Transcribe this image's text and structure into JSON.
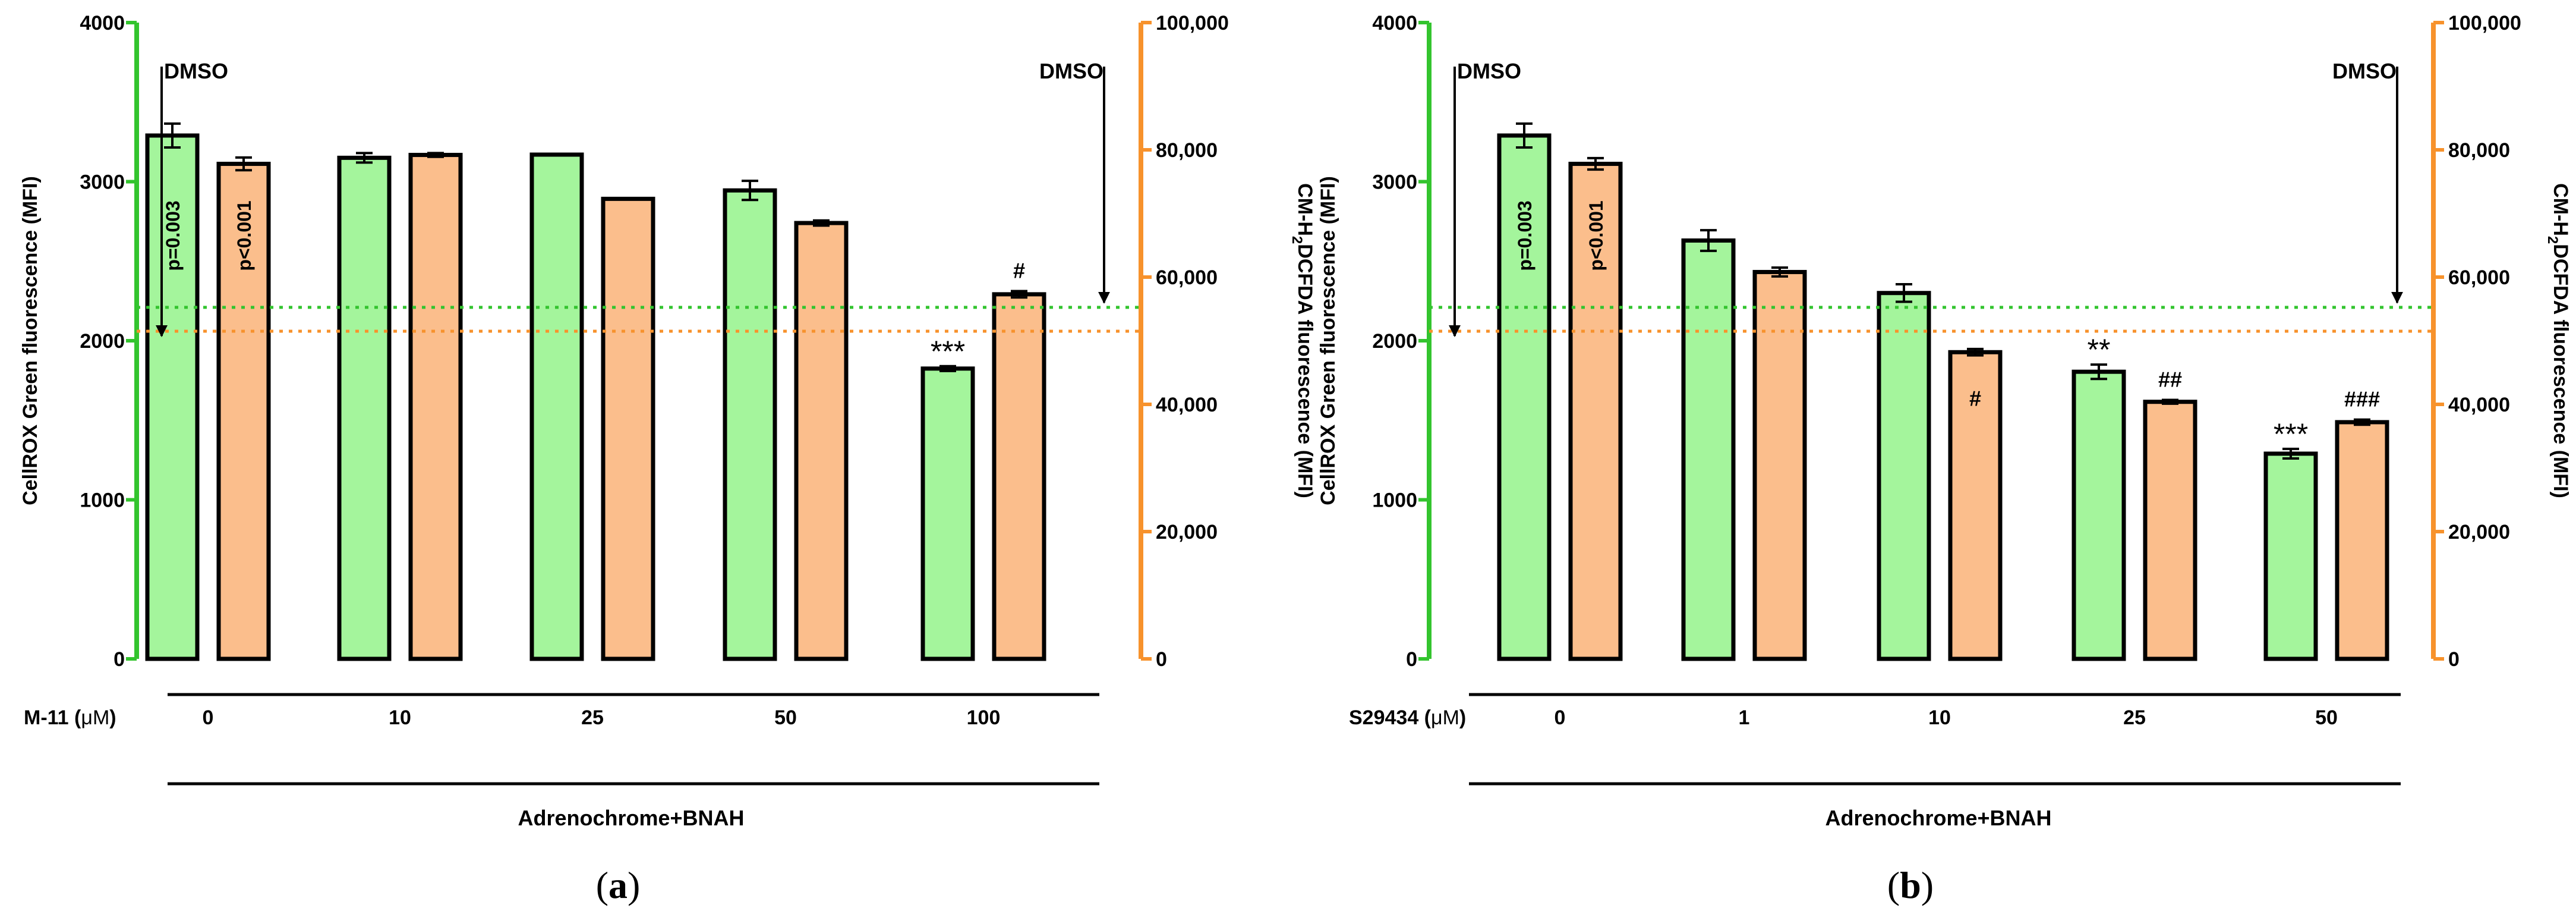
{
  "colors": {
    "green_bar": "#a4f59c",
    "orange_bar": "#fbbe8c",
    "green_axis": "#33c42e",
    "orange_axis": "#f7922c",
    "outline": "#000000"
  },
  "chart_data": [
    {
      "type": "bar",
      "panel_label": "a",
      "categories": [
        "0",
        "10",
        "25",
        "50",
        "100"
      ],
      "series": [
        {
          "name": "CellROX Green fluorescence (MFI)",
          "axis": "left",
          "values": [
            3290,
            3150,
            3170,
            2945,
            1825
          ],
          "errors": [
            75,
            30,
            0,
            60,
            15
          ]
        },
        {
          "name": "CM-H2DCFDA fluorescence (MFI)",
          "axis": "right",
          "values": [
            77800,
            79200,
            72300,
            68500,
            57300
          ],
          "errors": [
            1000,
            300,
            0,
            400,
            500
          ]
        }
      ],
      "left_axis": {
        "ylabel": "CellROX Green fluorescence (MFI)",
        "ylim": [
          0,
          4000
        ],
        "ticks": [
          0,
          1000,
          2000,
          3000,
          4000
        ],
        "tick_labels": [
          "0",
          "1000",
          "2000",
          "3000",
          "4000"
        ]
      },
      "right_axis": {
        "ylabel_prefix": "CM-H",
        "ylabel_sub": "2",
        "ylabel_suffix": "DCFDA fluorescence (MFI)",
        "ylim": [
          0,
          100000
        ],
        "ticks": [
          0,
          20000,
          40000,
          60000,
          80000,
          100000
        ],
        "tick_labels": [
          "0",
          "20,000",
          "40,000",
          "60,000",
          "80,000",
          "100,000"
        ]
      },
      "ref_lines": {
        "green": 2210,
        "orange": 51500
      },
      "dmso_left": "DMSO",
      "dmso_right": "DMSO",
      "x_prefix": "M-11 (",
      "x_unit": "μM",
      "x_suffix": ")",
      "xlabel": "Adrenochrome+BNAH",
      "bar_text_green": "p=0.003",
      "bar_text_orange": "p<0.001",
      "annotations": [
        {
          "text": "***",
          "category": 4,
          "series": 0
        },
        {
          "text": "#",
          "category": 4,
          "series": 1
        }
      ]
    },
    {
      "type": "bar",
      "panel_label": "b",
      "categories": [
        "0",
        "1",
        "10",
        "25",
        "50"
      ],
      "series": [
        {
          "name": "CellROX Green fluorescence (MFI)",
          "axis": "left",
          "values": [
            3290,
            2630,
            2300,
            1805,
            1290
          ],
          "errors": [
            75,
            65,
            55,
            45,
            30
          ]
        },
        {
          "name": "CM-H2DCFDA fluorescence (MFI)",
          "axis": "right",
          "values": [
            77800,
            60800,
            48200,
            40400,
            37200
          ],
          "errors": [
            900,
            700,
            500,
            300,
            400
          ]
        }
      ],
      "left_axis": {
        "ylabel": "CellROX Green fluorescence (MFI)",
        "ylim": [
          0,
          4000
        ],
        "ticks": [
          0,
          1000,
          2000,
          3000,
          4000
        ],
        "tick_labels": [
          "0",
          "1000",
          "2000",
          "3000",
          "4000"
        ]
      },
      "right_axis": {
        "ylabel_prefix": "CM-H",
        "ylabel_sub": "2",
        "ylabel_suffix": "DCFDA fluorescence (MFI)",
        "ylim": [
          0,
          100000
        ],
        "ticks": [
          0,
          20000,
          40000,
          60000,
          80000,
          100000
        ],
        "tick_labels": [
          "0",
          "20,000",
          "40,000",
          "60,000",
          "80,000",
          "100,000"
        ]
      },
      "ref_lines": {
        "green": 2210,
        "orange": 51500
      },
      "dmso_left": "DMSO",
      "dmso_right": "DMSO",
      "x_prefix": "S29434 (",
      "x_unit": "μM",
      "x_suffix": ")",
      "xlabel": "Adrenochrome+BNAH",
      "bar_text_green": "p=0.003",
      "bar_text_orange": "p<0.001",
      "annotations": [
        {
          "text": "#",
          "category": 2,
          "series": 1,
          "inside": true
        },
        {
          "text": "**",
          "category": 3,
          "series": 0
        },
        {
          "text": "##",
          "category": 3,
          "series": 1
        },
        {
          "text": "***",
          "category": 4,
          "series": 0
        },
        {
          "text": "###",
          "category": 4,
          "series": 1
        }
      ]
    }
  ]
}
